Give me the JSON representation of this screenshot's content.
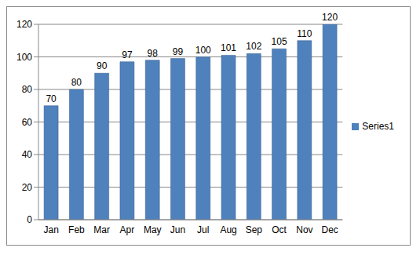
{
  "chart_data": {
    "type": "bar",
    "categories": [
      "Jan",
      "Feb",
      "Mar",
      "Apr",
      "May",
      "Jun",
      "Jul",
      "Aug",
      "Sep",
      "Oct",
      "Nov",
      "Dec"
    ],
    "series": [
      {
        "name": "Series1",
        "color": "#4f81bd",
        "values": [
          70,
          80,
          90,
          97,
          98,
          99,
          100,
          101,
          102,
          105,
          110,
          120
        ]
      }
    ],
    "ylim": [
      0,
      120
    ],
    "yticks": [
      0,
      20,
      40,
      60,
      80,
      100,
      120
    ],
    "grid": true,
    "legend": "right",
    "data_labels": true
  }
}
